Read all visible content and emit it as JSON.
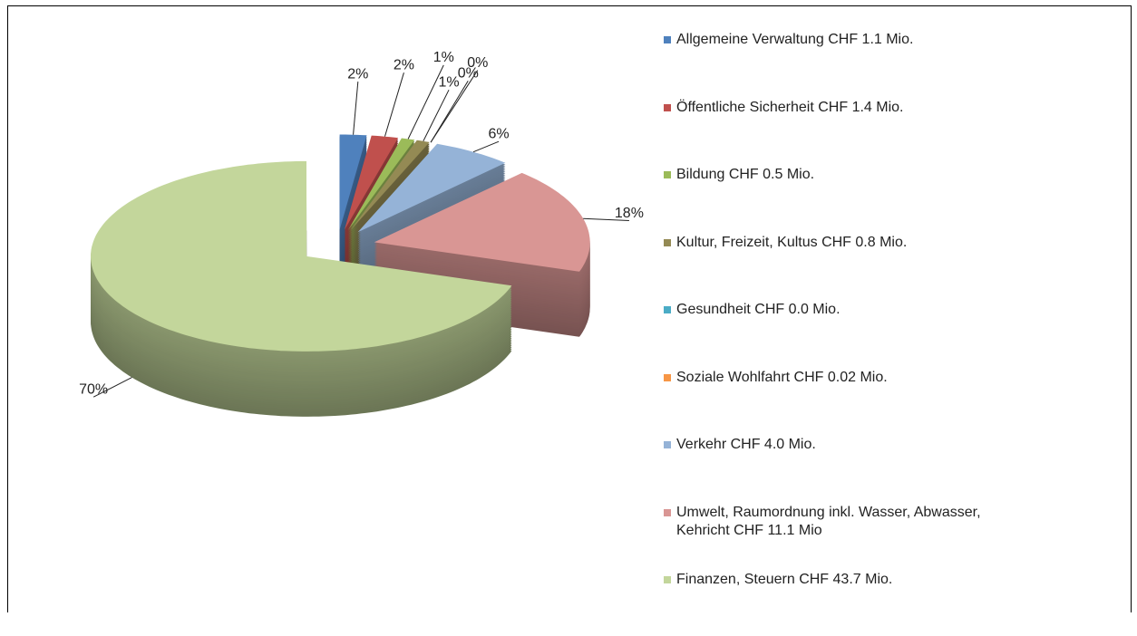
{
  "chart_data": {
    "type": "pie",
    "categories": [
      "Allgemeine Verwaltung CHF 1.1 Mio.",
      "Öffentliche Sicherheit CHF 1.4 Mio.",
      "Bildung CHF 0.5 Mio.",
      "Kultur, Freizeit, Kultus CHF 0.8 Mio.",
      "Gesundheit CHF 0.0 Mio.",
      "Soziale Wohlfahrt CHF 0.02 Mio.",
      "Verkehr CHF 4.0 Mio.",
      "Umwelt, Raumordnung inkl. Wasser, Abwasser, Kehricht CHF 11.1 Mio",
      "Finanzen, Steuern CHF 43.7 Mio."
    ],
    "values": [
      2,
      2,
      1,
      1,
      0,
      0,
      6,
      18,
      70
    ],
    "value_labels": [
      "2%",
      "2%",
      "1%",
      "1%",
      "0%",
      "0%",
      "6%",
      "18%",
      "70%"
    ],
    "colors": [
      "#4f81bd",
      "#c0504d",
      "#9bbb59",
      "#948a54",
      "#4bacc6",
      "#f79646",
      "#95b3d7",
      "#d99694",
      "#c3d69b"
    ],
    "legend": "right"
  }
}
